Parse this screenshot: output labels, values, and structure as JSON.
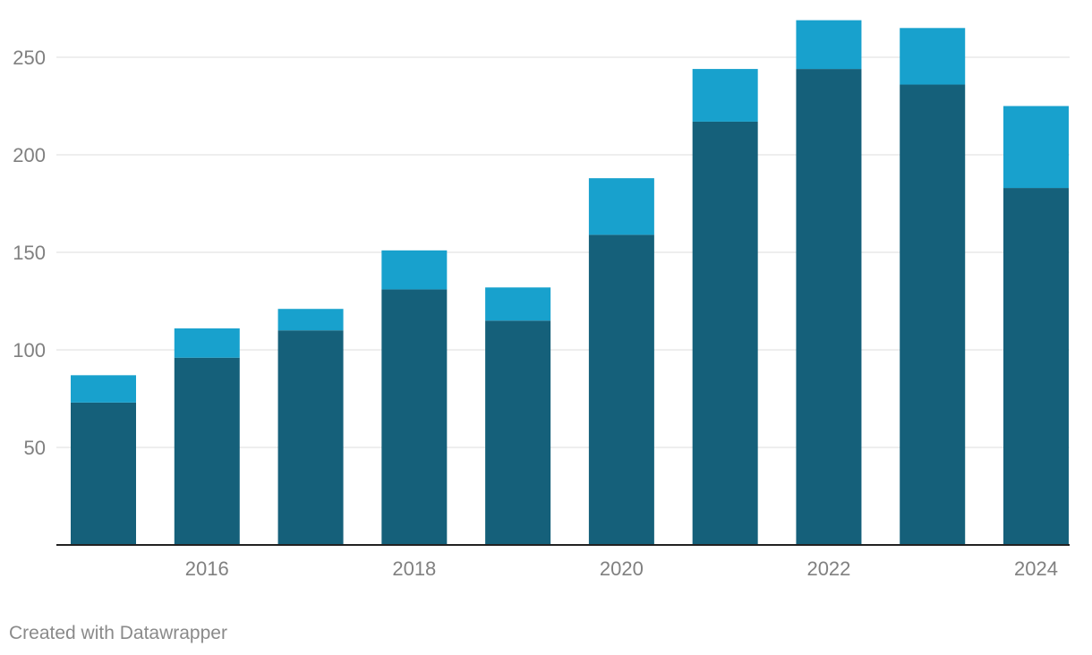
{
  "credit": "Created with Datawrapper",
  "chart_data": {
    "type": "bar",
    "stacked": true,
    "categories": [
      "2015",
      "2016",
      "2017",
      "2018",
      "2019",
      "2020",
      "2021",
      "2022",
      "2023",
      "2024"
    ],
    "x_tick_labels": [
      "2016",
      "2018",
      "2020",
      "2022",
      "2024"
    ],
    "y_ticks": [
      50,
      100,
      150,
      200,
      250
    ],
    "ylim": [
      0,
      270
    ],
    "grid": true,
    "title": "",
    "xlabel": "",
    "ylabel": "",
    "colors": {
      "dark": "#15607a",
      "light": "#18a1cd"
    },
    "series": [
      {
        "values": [
          73,
          96,
          110,
          131,
          115,
          159,
          217,
          244,
          236,
          183
        ]
      },
      {
        "values": [
          14,
          15,
          11,
          20,
          17,
          29,
          27,
          25,
          29,
          42
        ]
      }
    ]
  }
}
